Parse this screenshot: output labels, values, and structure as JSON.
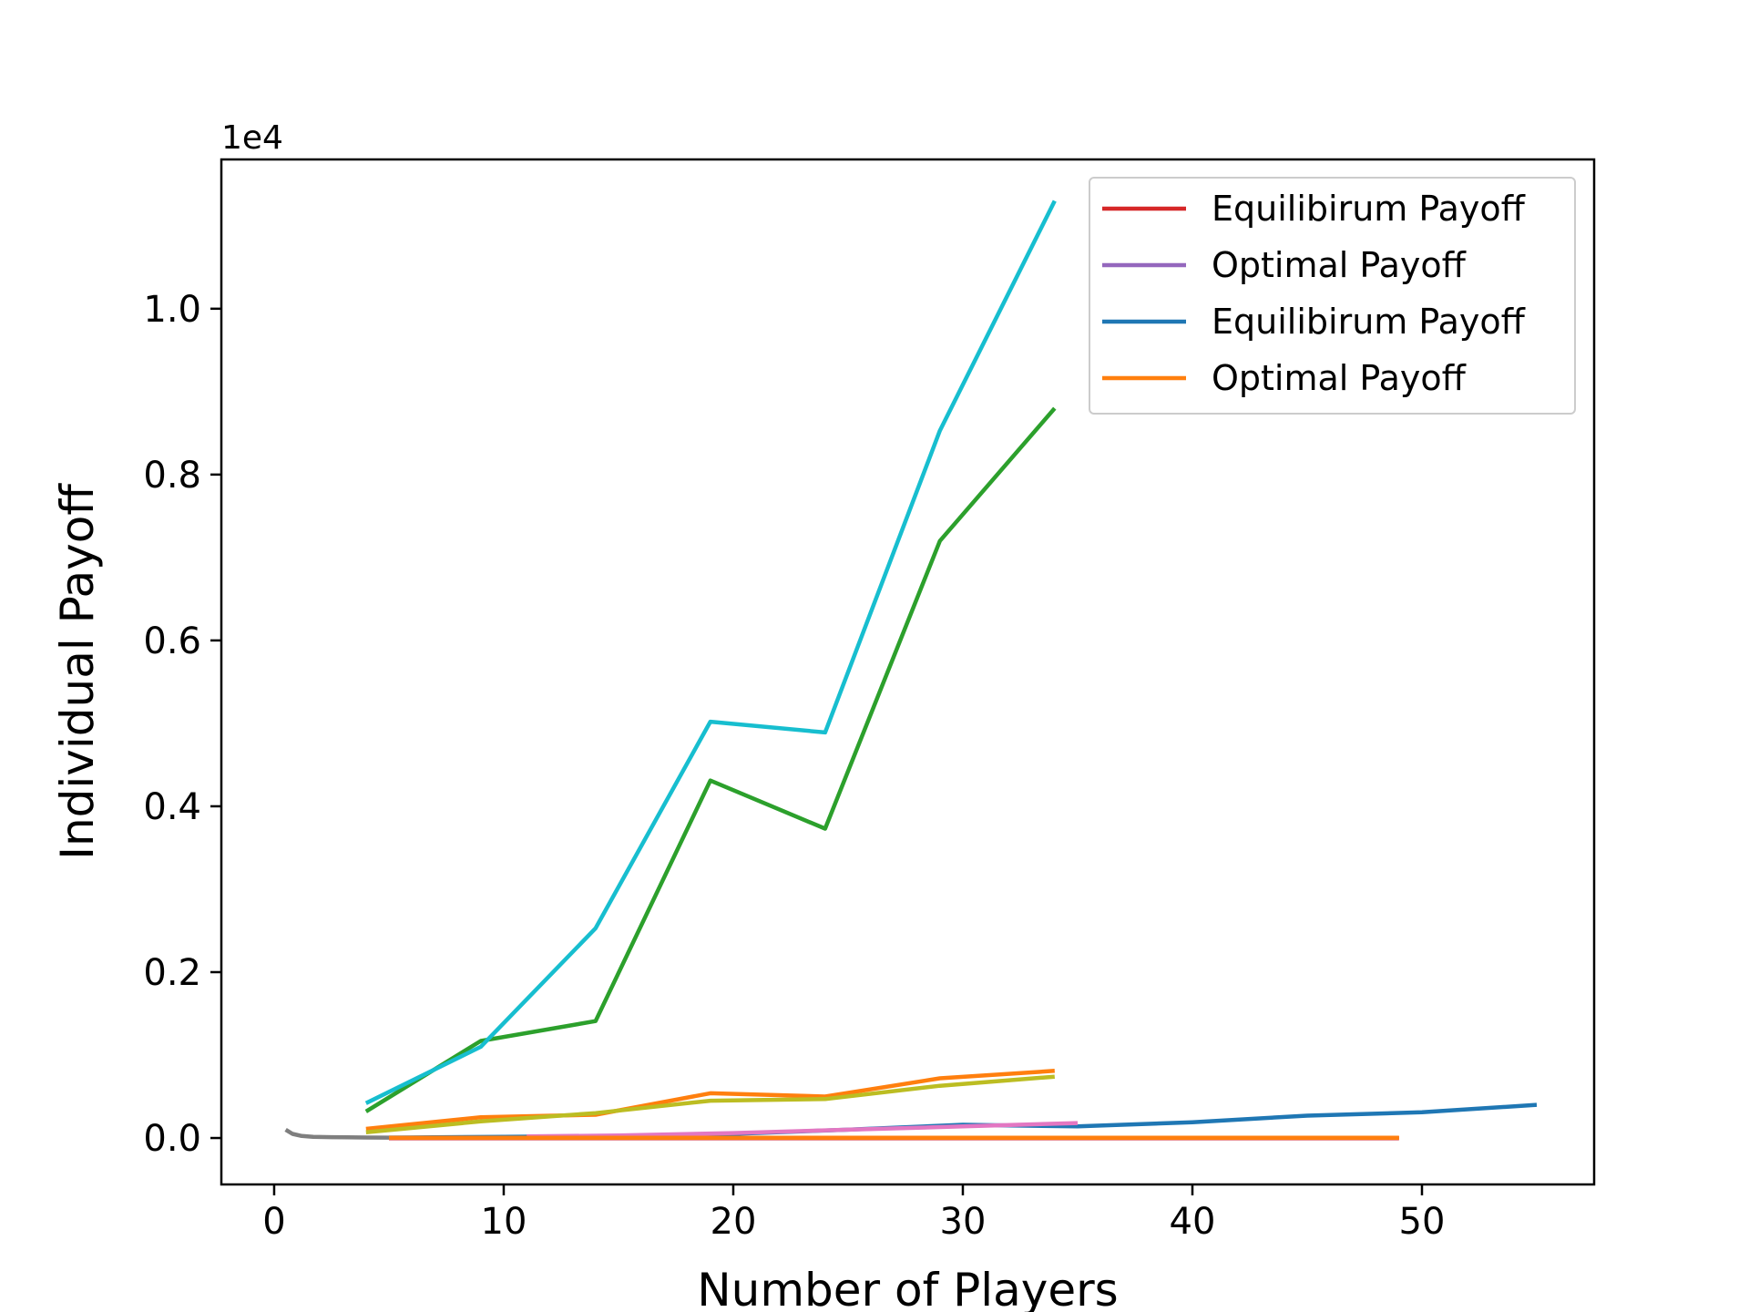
{
  "chart_data": {
    "type": "line",
    "xlabel": "Number of Players",
    "ylabel": "Individual Payoff",
    "y_offset_text": "1e4",
    "xlim": [
      -2.3,
      57.5
    ],
    "ylim": [
      -560,
      11800
    ],
    "x_ticks": [
      0,
      10,
      20,
      30,
      40,
      50
    ],
    "y_ticks": [
      0,
      2000,
      4000,
      6000,
      8000,
      10000
    ],
    "x_tick_labels": [
      "0",
      "10",
      "20",
      "30",
      "40",
      "50"
    ],
    "y_tick_labels": [
      "0.0",
      "0.2",
      "0.4",
      "0.6",
      "0.8",
      "1.0"
    ],
    "grid": false,
    "legend_position": "top-right",
    "legend": [
      {
        "label": "Equilibirum Payoff",
        "color": "#d62728"
      },
      {
        "label": "Optimal Payoff",
        "color": "#9467bd"
      },
      {
        "label": "Equilibirum Payoff",
        "color": "#1f77b4"
      },
      {
        "label": "Optimal Payoff",
        "color": "#ff7f0e"
      }
    ],
    "series": [
      {
        "color": "#7f7f7f",
        "x": [
          0.5,
          0.8,
          1.2,
          1.7,
          2.5,
          4,
          6,
          8,
          11
        ],
        "y": [
          100,
          50,
          25,
          15,
          10,
          6,
          4,
          3,
          2
        ]
      },
      {
        "color": "#1f77b4",
        "x": [
          5,
          10,
          15,
          20,
          25,
          30,
          35,
          40,
          45,
          50,
          55
        ],
        "y": [
          5,
          15,
          25,
          50,
          100,
          160,
          140,
          190,
          270,
          310,
          400
        ]
      },
      {
        "color": "#e377c2",
        "x": [
          11,
          15,
          20,
          25,
          30,
          35
        ],
        "y": [
          20,
          30,
          60,
          100,
          140,
          180
        ]
      },
      {
        "color": "#d62728",
        "x": [
          5,
          10,
          15,
          20,
          25,
          30,
          35,
          40,
          45,
          49
        ],
        "y": [
          -3,
          -3,
          -3,
          -3,
          -3,
          -3,
          -3,
          -3,
          -3,
          -3
        ]
      },
      {
        "color": "#ff7f0e",
        "x": [
          5,
          10,
          15,
          20,
          25,
          30,
          35,
          40,
          45,
          49
        ],
        "y": [
          4,
          4,
          4,
          4,
          4,
          4,
          4,
          4,
          4,
          4
        ]
      },
      {
        "color": "#ff7f0e",
        "x": [
          4,
          9,
          14,
          19,
          24,
          29,
          34
        ],
        "y": [
          110,
          250,
          280,
          540,
          500,
          720,
          810
        ]
      },
      {
        "color": "#bcbd22",
        "x": [
          4,
          9,
          14,
          19,
          24,
          29,
          34
        ],
        "y": [
          70,
          200,
          300,
          450,
          470,
          630,
          740
        ]
      },
      {
        "color": "#2ca02c",
        "x": [
          4,
          9,
          14,
          19,
          24,
          29,
          34
        ],
        "y": [
          320,
          1170,
          1410,
          4310,
          3730,
          7200,
          8800
        ]
      },
      {
        "color": "#17becf",
        "x": [
          4,
          9,
          14,
          19,
          24,
          29,
          34
        ],
        "y": [
          420,
          1100,
          2530,
          5020,
          4890,
          8530,
          11300
        ]
      }
    ]
  }
}
